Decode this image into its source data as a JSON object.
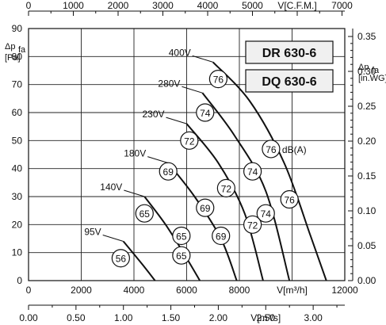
{
  "chart_data": {
    "type": "line",
    "models": [
      "DR 630-6",
      "DQ 630-6"
    ],
    "axes": {
      "x_bottom_primary": {
        "label": "V[m³/h]",
        "ticks": [
          0,
          2000,
          4000,
          6000,
          8000,
          12000
        ],
        "range": [
          0,
          12000
        ]
      },
      "x_bottom_secondary": {
        "label": "V[m³/s]",
        "ticks": [
          "0.00",
          "0.50",
          "1.00",
          "1.50",
          "2.00",
          "2.50",
          "3.00"
        ],
        "range": [
          0,
          3.333
        ]
      },
      "x_top": {
        "label": "V[C.F.M.]",
        "ticks": [
          0,
          1000,
          2000,
          3000,
          4000,
          5000,
          7000
        ],
        "range": [
          0,
          7062
        ]
      },
      "y_left": {
        "label_main": "Δp",
        "label_sub": "fa",
        "unit": "[Pa]",
        "ticks": [
          0,
          10,
          20,
          30,
          40,
          50,
          60,
          70,
          80,
          90
        ],
        "range": [
          0,
          90
        ]
      },
      "y_right": {
        "label_main": "Δp",
        "label_sub": "fa",
        "unit": "[in.WG]",
        "ticks": [
          "0.00",
          "0.05",
          "0.10",
          "0.15",
          "0.20",
          "0.25",
          "0.30",
          "0.35"
        ],
        "range": [
          0,
          0.3614
        ]
      }
    },
    "series": [
      {
        "name": "95V",
        "points": [
          [
            3600,
            14
          ],
          [
            4300,
            6
          ],
          [
            4800,
            0
          ]
        ]
      },
      {
        "name": "140V",
        "points": [
          [
            4400,
            30
          ],
          [
            5200,
            20
          ],
          [
            6000,
            8
          ],
          [
            6500,
            0
          ]
        ]
      },
      {
        "name": "180V",
        "points": [
          [
            5300,
            42
          ],
          [
            6300,
            30
          ],
          [
            7300,
            15
          ],
          [
            7900,
            0
          ]
        ]
      },
      {
        "name": "230V",
        "points": [
          [
            6000,
            56
          ],
          [
            7200,
            42
          ],
          [
            8200,
            24
          ],
          [
            8900,
            0
          ]
        ]
      },
      {
        "name": "280V",
        "points": [
          [
            6600,
            67
          ],
          [
            7800,
            52
          ],
          [
            9000,
            32
          ],
          [
            9900,
            0
          ]
        ]
      },
      {
        "name": "400V",
        "points": [
          [
            7000,
            78
          ],
          [
            8400,
            64
          ],
          [
            9700,
            42
          ],
          [
            10700,
            16
          ],
          [
            11300,
            0
          ]
        ]
      }
    ],
    "sound_markers": [
      {
        "text": "76",
        "x": 7200,
        "y": 72
      },
      {
        "text": "74",
        "x": 6700,
        "y": 60
      },
      {
        "text": "72",
        "x": 6100,
        "y": 50
      },
      {
        "text": "69",
        "x": 5300,
        "y": 39
      },
      {
        "text": "65",
        "x": 4400,
        "y": 24
      },
      {
        "text": "56",
        "x": 3500,
        "y": 8
      },
      {
        "text": "76",
        "x": 9200,
        "y": 47
      },
      {
        "text": "74",
        "x": 8500,
        "y": 39
      },
      {
        "text": "72",
        "x": 7500,
        "y": 33
      },
      {
        "text": "69",
        "x": 6700,
        "y": 26
      },
      {
        "text": "65",
        "x": 5800,
        "y": 16
      },
      {
        "text": "65",
        "x": 5800,
        "y": 9
      },
      {
        "text": "76",
        "x": 9900,
        "y": 29
      },
      {
        "text": "74",
        "x": 9000,
        "y": 24
      },
      {
        "text": "72",
        "x": 8500,
        "y": 20
      },
      {
        "text": "69",
        "x": 7300,
        "y": 16
      }
    ],
    "db_label": "dB(A)",
    "grid": true
  }
}
